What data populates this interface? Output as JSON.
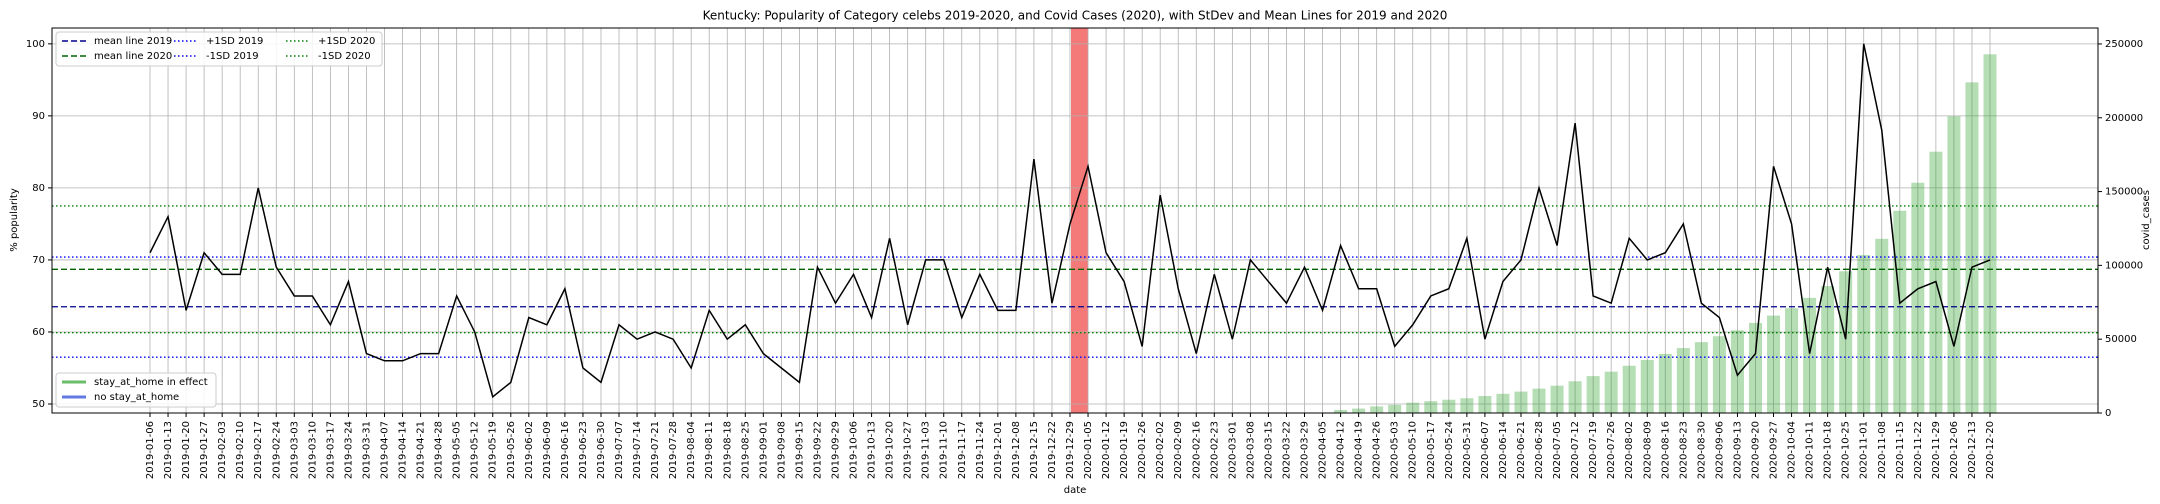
{
  "chart_data": {
    "type": "line",
    "title": "Kentucky: Popularity of Category celebs 2019-2020, and Covid Cases (2020), with StDev and Mean Lines for 2019 and 2020",
    "xlabel": "date",
    "ylabel": "% popularity",
    "y2label": "covid_cases",
    "grid": true,
    "ylim": [
      48.75,
      102.2
    ],
    "yticks": [
      50,
      60,
      70,
      80,
      90,
      100
    ],
    "y2lim": [
      0,
      260800
    ],
    "y2ticks": [
      0,
      50000,
      100000,
      150000,
      200000,
      250000
    ],
    "categories": [
      "2019-01-06",
      "2019-01-13",
      "2019-01-20",
      "2019-01-27",
      "2019-02-03",
      "2019-02-10",
      "2019-02-17",
      "2019-02-24",
      "2019-03-03",
      "2019-03-10",
      "2019-03-17",
      "2019-03-24",
      "2019-03-31",
      "2019-04-07",
      "2019-04-14",
      "2019-04-21",
      "2019-04-28",
      "2019-05-05",
      "2019-05-12",
      "2019-05-19",
      "2019-05-26",
      "2019-06-02",
      "2019-06-09",
      "2019-06-16",
      "2019-06-23",
      "2019-06-30",
      "2019-07-07",
      "2019-07-14",
      "2019-07-21",
      "2019-07-28",
      "2019-08-04",
      "2019-08-11",
      "2019-08-18",
      "2019-08-25",
      "2019-09-01",
      "2019-09-08",
      "2019-09-15",
      "2019-09-22",
      "2019-09-29",
      "2019-10-06",
      "2019-10-13",
      "2019-10-20",
      "2019-10-27",
      "2019-11-03",
      "2019-11-10",
      "2019-11-17",
      "2019-11-24",
      "2019-12-01",
      "2019-12-08",
      "2019-12-15",
      "2019-12-22",
      "2019-12-29",
      "2020-01-05",
      "2020-01-12",
      "2020-01-19",
      "2020-01-26",
      "2020-02-02",
      "2020-02-09",
      "2020-02-16",
      "2020-02-23",
      "2020-03-01",
      "2020-03-08",
      "2020-03-15",
      "2020-03-22",
      "2020-03-29",
      "2020-04-05",
      "2020-04-12",
      "2020-04-19",
      "2020-04-26",
      "2020-05-03",
      "2020-05-10",
      "2020-05-17",
      "2020-05-24",
      "2020-05-31",
      "2020-06-07",
      "2020-06-14",
      "2020-06-21",
      "2020-06-28",
      "2020-07-05",
      "2020-07-12",
      "2020-07-19",
      "2020-07-26",
      "2020-08-02",
      "2020-08-09",
      "2020-08-16",
      "2020-08-23",
      "2020-08-30",
      "2020-09-06",
      "2020-09-13",
      "2020-09-20",
      "2020-09-27",
      "2020-10-04",
      "2020-10-11",
      "2020-10-18",
      "2020-10-25",
      "2020-11-01",
      "2020-11-08",
      "2020-11-15",
      "2020-11-22",
      "2020-11-29",
      "2020-12-06",
      "2020-12-13",
      "2020-12-20"
    ],
    "series": [
      {
        "name": "popularity",
        "type": "line",
        "color": "#000000",
        "values": [
          71,
          76,
          63,
          71,
          68,
          68,
          80,
          69,
          65,
          65,
          61,
          67,
          57,
          56,
          56,
          57,
          57,
          65,
          60,
          51,
          53,
          62,
          61,
          66,
          55,
          53,
          61,
          59,
          60,
          59,
          55,
          63,
          59,
          61,
          57,
          55,
          53,
          69,
          64,
          68,
          62,
          73,
          61,
          70,
          70,
          62,
          68,
          63,
          63,
          84,
          64,
          75,
          83,
          71,
          67,
          58,
          79,
          66,
          57,
          68,
          59,
          70,
          67,
          64,
          69,
          63,
          72,
          66,
          66,
          58,
          61,
          65,
          66,
          73,
          59,
          67,
          70,
          80,
          72,
          89,
          65,
          64,
          73,
          70,
          71,
          75,
          64,
          62,
          54,
          57,
          83,
          75,
          57,
          69,
          59,
          100,
          88,
          64,
          66,
          67,
          58,
          69,
          70
        ]
      },
      {
        "name": "covid_cases",
        "type": "bar",
        "axis": "y2",
        "color": "#2ca02c",
        "values": [
          null,
          null,
          null,
          null,
          null,
          null,
          null,
          null,
          null,
          null,
          null,
          null,
          null,
          null,
          null,
          null,
          null,
          null,
          null,
          null,
          null,
          null,
          null,
          null,
          null,
          null,
          null,
          null,
          null,
          null,
          null,
          null,
          null,
          null,
          null,
          null,
          null,
          null,
          null,
          null,
          null,
          null,
          null,
          null,
          null,
          null,
          null,
          null,
          null,
          null,
          null,
          null,
          null,
          null,
          null,
          null,
          null,
          null,
          null,
          null,
          null,
          null,
          null,
          null,
          null,
          null,
          2000,
          3000,
          4500,
          5500,
          7000,
          8000,
          9000,
          10000,
          11500,
          13000,
          14500,
          16500,
          18500,
          21500,
          25000,
          28000,
          32000,
          36000,
          40000,
          44000,
          48000,
          52000,
          56000,
          61000,
          66000,
          71000,
          78000,
          86000,
          96000,
          107000,
          118000,
          137000,
          156000,
          177000,
          201000,
          224000,
          243000
        ]
      }
    ],
    "hlines": [
      {
        "name": "mean line 2019",
        "color": "#00008b",
        "style": "dashed",
        "value": 63.5
      },
      {
        "name": "mean line 2020",
        "color": "#006400",
        "style": "dashed",
        "value": 68.7
      },
      {
        "name": "+1SD 2019",
        "color": "#0000ff",
        "style": "dotted",
        "value": 70.4
      },
      {
        "name": "-1SD 2019",
        "color": "#0000ff",
        "style": "dotted",
        "value": 56.5
      },
      {
        "name": "+1SD 2020",
        "color": "#008000",
        "style": "dotted",
        "value": 77.5
      },
      {
        "name": "-1SD 2020",
        "color": "#008000",
        "style": "dotted",
        "value": 59.9
      }
    ],
    "legend2": [
      {
        "name": "stay_at_home in effect",
        "color": "#2ca02c"
      },
      {
        "name": "no stay_at_home",
        "color": "#1f3fd6"
      }
    ]
  }
}
